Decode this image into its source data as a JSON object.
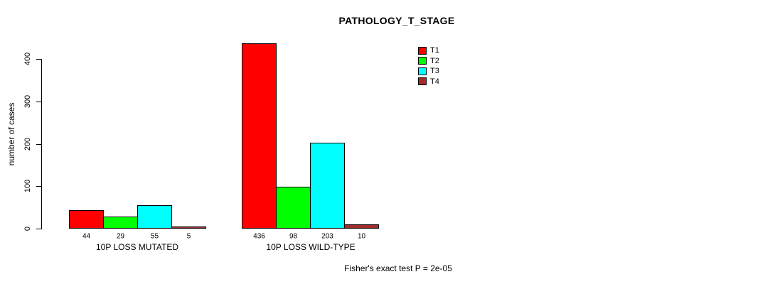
{
  "title": "PATHOLOGY_T_STAGE",
  "footer": "Fisher's exact test P = 2e-05",
  "colors": {
    "t1": "#ff0000",
    "t2": "#00ff00",
    "t3": "#00ffff",
    "t4": "#a52a2a",
    "axis": "#000000",
    "background": "#ffffff"
  },
  "chart_data": {
    "type": "bar",
    "title": "PATHOLOGY_T_STAGE",
    "xlabel": "",
    "ylabel": "number of cases",
    "categories": [
      "10P LOSS MUTATED",
      "10P LOSS WILD-TYPE"
    ],
    "series": [
      {
        "name": "T1",
        "color": "#ff0000",
        "values": [
          44,
          436
        ]
      },
      {
        "name": "T2",
        "color": "#00ff00",
        "values": [
          29,
          98
        ]
      },
      {
        "name": "T3",
        "color": "#00ffff",
        "values": [
          55,
          203
        ]
      },
      {
        "name": "T4",
        "color": "#a52a2a",
        "values": [
          5,
          10
        ]
      }
    ],
    "yticks": [
      0,
      100,
      200,
      300,
      400
    ],
    "ylim": [
      0,
      440
    ],
    "grid": false,
    "legend_position": "top-right",
    "annotation": "Fisher's exact test P = 2e-05"
  }
}
